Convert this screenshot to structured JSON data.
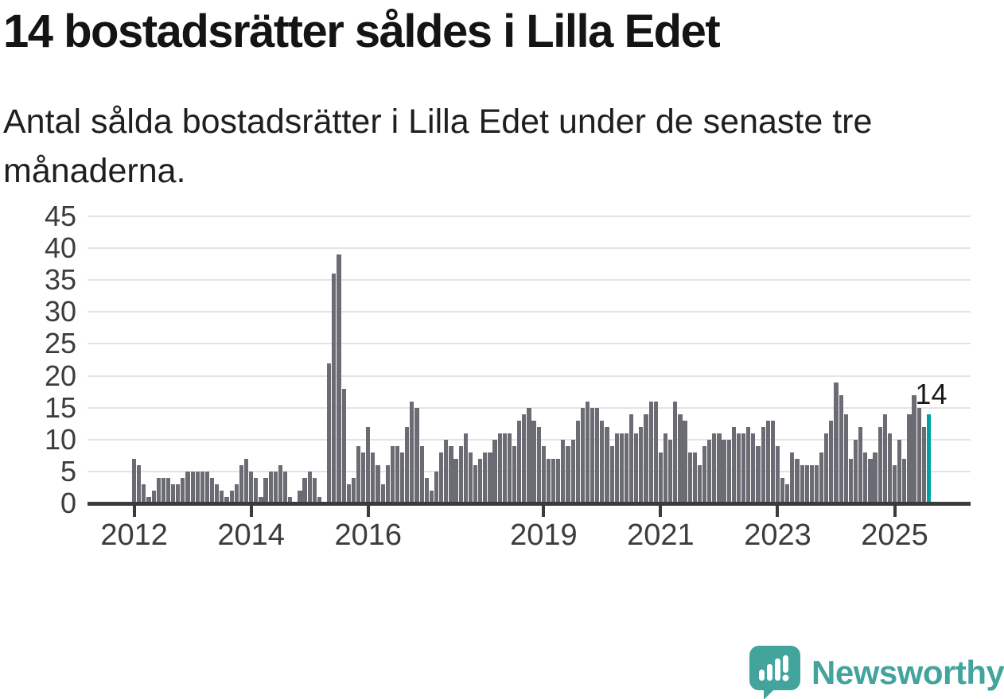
{
  "title": "14 bostadsrätter såldes i Lilla Edet",
  "subtitle": "Antal sålda bostadsrätter i Lilla Edet under de senaste tre månaderna.",
  "annotation": {
    "label": "14"
  },
  "branding": {
    "name": "Newsworthy",
    "icon": "newsworthy-chart-bubble-icon"
  },
  "colors": {
    "bar": "#6b6b74",
    "highlight": "#00a1a4",
    "grid": "#e4e4e4",
    "axis": "#3b3b3b",
    "axis_text": "#3c3c3c",
    "brand": "#43a49d"
  },
  "chart_data": {
    "type": "bar",
    "title": "14 bostadsrätter såldes i Lilla Edet",
    "subtitle": "Antal sålda bostadsrätter i Lilla Edet under de senaste tre månaderna.",
    "unit": "sålda bostadsrätter (rullande 3 månader)",
    "start_month": "2012-01",
    "end_month": "2025-08",
    "ylim": [
      0,
      45
    ],
    "y_ticks": [
      0,
      5,
      10,
      15,
      20,
      25,
      30,
      35,
      40,
      45
    ],
    "grid": true,
    "x_tick_years": [
      {
        "label": "2012",
        "month_index": 0
      },
      {
        "label": "2014",
        "month_index": 24
      },
      {
        "label": "2016",
        "month_index": 48
      },
      {
        "label": "2019",
        "month_index": 84
      },
      {
        "label": "2021",
        "month_index": 108
      },
      {
        "label": "2023",
        "month_index": 132
      },
      {
        "label": "2025",
        "month_index": 156
      }
    ],
    "values": [
      7,
      6,
      3,
      1,
      2,
      4,
      4,
      4,
      3,
      3,
      4,
      5,
      5,
      5,
      5,
      5,
      4,
      3,
      2,
      1,
      2,
      3,
      6,
      7,
      5,
      4,
      1,
      4,
      5,
      5,
      6,
      5,
      1,
      0,
      2,
      4,
      5,
      4,
      1,
      0,
      22,
      36,
      39,
      18,
      3,
      4,
      9,
      8,
      12,
      8,
      6,
      3,
      6,
      9,
      9,
      8,
      12,
      16,
      15,
      9,
      4,
      2,
      5,
      8,
      10,
      9,
      7,
      9,
      11,
      8,
      6,
      7,
      8,
      8,
      10,
      11,
      11,
      11,
      9,
      13,
      14,
      15,
      13,
      12,
      9,
      7,
      7,
      7,
      10,
      9,
      10,
      13,
      15,
      16,
      15,
      15,
      13,
      12,
      9,
      11,
      11,
      11,
      14,
      11,
      12,
      14,
      16,
      16,
      8,
      11,
      10,
      16,
      14,
      13,
      8,
      8,
      6,
      9,
      10,
      11,
      11,
      10,
      10,
      12,
      11,
      11,
      12,
      11,
      9,
      12,
      13,
      13,
      9,
      4,
      3,
      8,
      7,
      6,
      6,
      6,
      6,
      8,
      11,
      13,
      19,
      17,
      14,
      7,
      10,
      12,
      8,
      7,
      8,
      12,
      14,
      11,
      6,
      10,
      7,
      14,
      17,
      15,
      12,
      14
    ],
    "highlight_index": 163,
    "highlight_value": 14,
    "highlight_label": "14"
  }
}
